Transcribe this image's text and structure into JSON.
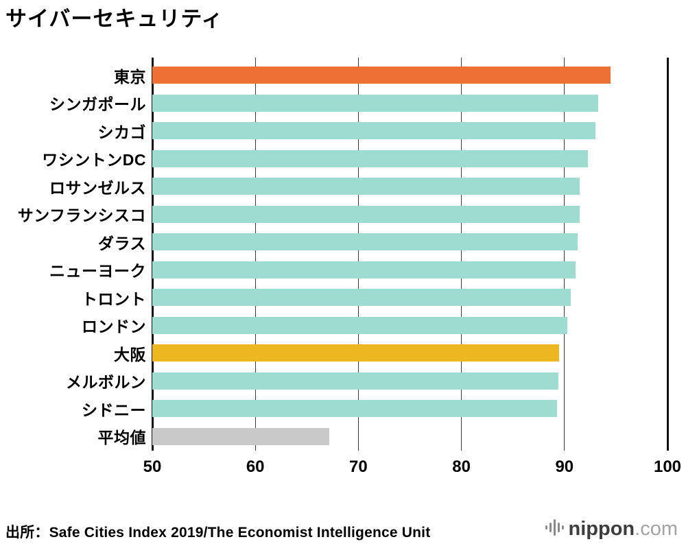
{
  "title": "サイバーセキュリティ",
  "source": "出所：Safe Cities Index 2019/The Economist Intelligence Unit",
  "logo": {
    "icon": "soundwave-icon",
    "name": "nippon",
    "tld": ".com"
  },
  "colors": {
    "highlight_tokyo": "#ed7135",
    "default_teal": "#9edcd1",
    "highlight_osaka": "#edb722",
    "average_gray": "#c9c9c9",
    "gridline": "#3a3a3a",
    "axis_edge": "#111111"
  },
  "chart_data": {
    "type": "bar",
    "orientation": "horizontal",
    "title": "サイバーセキュリティ",
    "categories": [
      "東京",
      "シンガポール",
      "シカゴ",
      "ワシントンDC",
      "ロサンゼルス",
      "サンフランシスコ",
      "ダラス",
      "ニューヨーク",
      "トロント",
      "ロンドン",
      "大阪",
      "メルボルン",
      "シドニー",
      "平均値"
    ],
    "values": [
      94.5,
      93.3,
      93.0,
      92.3,
      91.5,
      91.5,
      91.3,
      91.1,
      90.6,
      90.3,
      89.5,
      89.4,
      89.3,
      67.2
    ],
    "bar_colors": [
      "#ed7135",
      "#9edcd1",
      "#9edcd1",
      "#9edcd1",
      "#9edcd1",
      "#9edcd1",
      "#9edcd1",
      "#9edcd1",
      "#9edcd1",
      "#9edcd1",
      "#edb722",
      "#9edcd1",
      "#9edcd1",
      "#c9c9c9"
    ],
    "xlim": [
      50,
      100
    ],
    "xticks": [
      50,
      60,
      70,
      80,
      90,
      100
    ],
    "grid": "vertical",
    "legend": "none"
  }
}
